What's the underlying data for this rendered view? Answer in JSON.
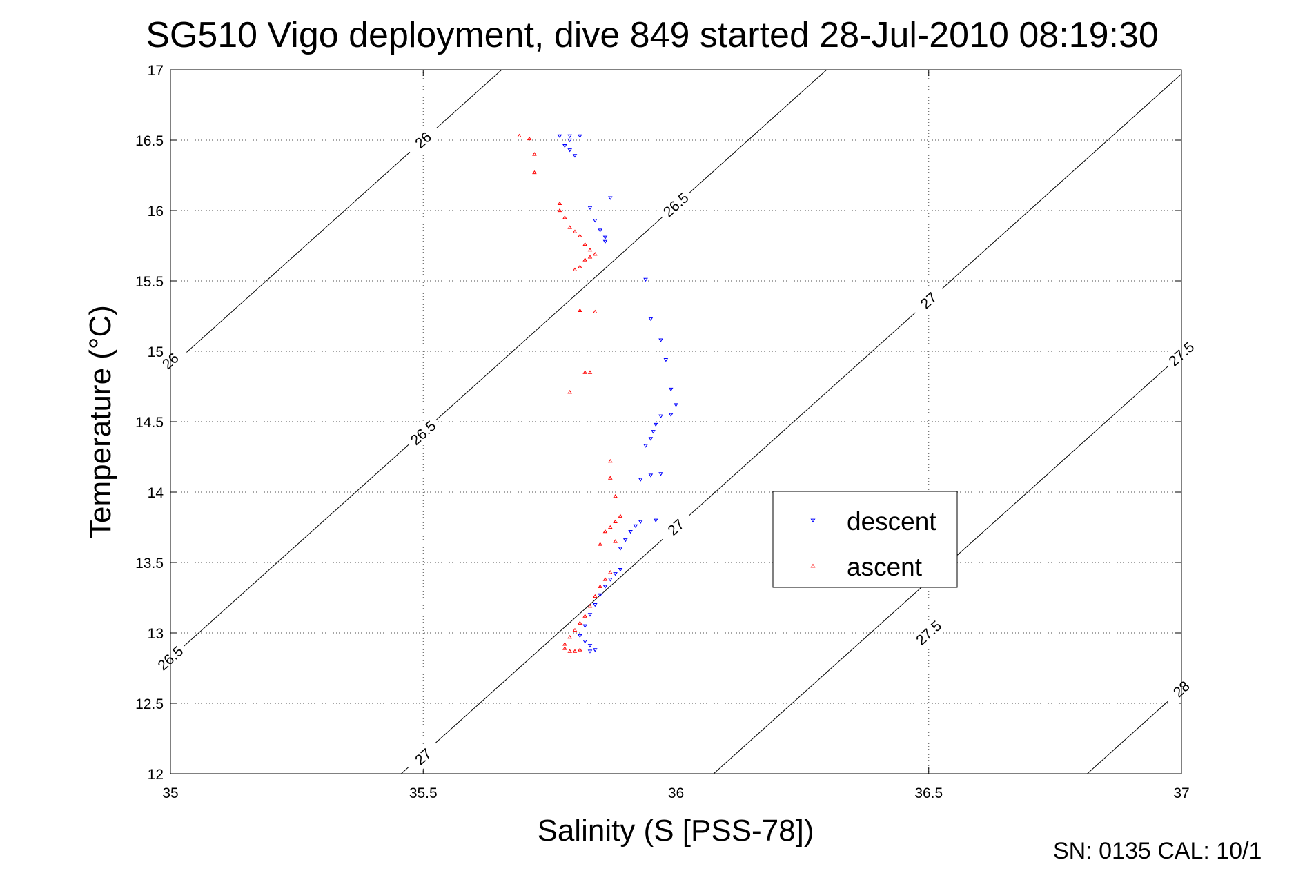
{
  "chart_data": {
    "type": "scatter",
    "title": "SG510 Vigo deployment, dive 849 started 28-Jul-2010 08:19:30",
    "xlabel": "Salinity (S [PSS-78])",
    "ylabel": "Temperature (°C)",
    "xlim": [
      35,
      37
    ],
    "ylim": [
      12,
      17
    ],
    "x_ticks": [
      "35",
      "35.5",
      "36",
      "36.5",
      "37"
    ],
    "y_ticks": [
      "12",
      "12.5",
      "13",
      "13.5",
      "14",
      "14.5",
      "15",
      "15.5",
      "16",
      "16.5",
      "17"
    ],
    "grid": true,
    "legend_position": "inside-right",
    "footer": "SN: 0135  CAL: 10/1",
    "density_contours": [
      {
        "label": "26",
        "anchors": [
          [
            35.5,
            16.5
          ],
          [
            35.0,
            14.93
          ]
        ]
      },
      {
        "label": "26.5",
        "anchors": [
          [
            36.0,
            16.04
          ],
          [
            35.5,
            14.42
          ],
          [
            35.0,
            12.82
          ]
        ]
      },
      {
        "label": "27",
        "anchors": [
          [
            36.5,
            15.36
          ],
          [
            36.0,
            13.75
          ],
          [
            35.5,
            12.12
          ]
        ]
      },
      {
        "label": "27.5",
        "anchors": [
          [
            37.0,
            14.98
          ],
          [
            36.5,
            13.0
          ]
        ]
      },
      {
        "label": "28",
        "anchors": [
          [
            37.0,
            12.6
          ]
        ]
      }
    ],
    "series": [
      {
        "name": "descent",
        "color": "#0000ff",
        "marker": "triangle-down",
        "points": [
          [
            35.77,
            16.53
          ],
          [
            35.79,
            16.53
          ],
          [
            35.81,
            16.53
          ],
          [
            35.79,
            16.5
          ],
          [
            35.78,
            16.46
          ],
          [
            35.79,
            16.43
          ],
          [
            35.8,
            16.39
          ],
          [
            35.87,
            16.09
          ],
          [
            35.83,
            16.02
          ],
          [
            35.84,
            15.93
          ],
          [
            35.85,
            15.86
          ],
          [
            35.86,
            15.81
          ],
          [
            35.86,
            15.78
          ],
          [
            35.94,
            15.51
          ],
          [
            35.95,
            15.23
          ],
          [
            35.97,
            15.08
          ],
          [
            35.98,
            14.94
          ],
          [
            35.99,
            14.73
          ],
          [
            36.0,
            14.62
          ],
          [
            35.99,
            14.55
          ],
          [
            35.97,
            14.54
          ],
          [
            35.96,
            14.48
          ],
          [
            35.955,
            14.43
          ],
          [
            35.95,
            14.38
          ],
          [
            35.94,
            14.33
          ],
          [
            35.93,
            14.09
          ],
          [
            35.95,
            14.12
          ],
          [
            35.97,
            14.13
          ],
          [
            35.96,
            13.8
          ],
          [
            35.93,
            13.79
          ],
          [
            35.92,
            13.76
          ],
          [
            35.91,
            13.72
          ],
          [
            35.9,
            13.66
          ],
          [
            35.89,
            13.6
          ],
          [
            35.89,
            13.45
          ],
          [
            35.88,
            13.42
          ],
          [
            35.87,
            13.38
          ],
          [
            35.86,
            13.33
          ],
          [
            35.85,
            13.27
          ],
          [
            35.84,
            13.2
          ],
          [
            35.83,
            13.13
          ],
          [
            35.82,
            13.05
          ],
          [
            35.81,
            12.98
          ],
          [
            35.82,
            12.94
          ],
          [
            35.83,
            12.91
          ],
          [
            35.84,
            12.88
          ],
          [
            35.83,
            12.87
          ]
        ]
      },
      {
        "name": "ascent",
        "color": "#ff0000",
        "marker": "triangle-up",
        "points": [
          [
            35.69,
            16.53
          ],
          [
            35.71,
            16.51
          ],
          [
            35.72,
            16.4
          ],
          [
            35.72,
            16.27
          ],
          [
            35.77,
            16.05
          ],
          [
            35.77,
            16.0
          ],
          [
            35.78,
            15.95
          ],
          [
            35.79,
            15.88
          ],
          [
            35.8,
            15.85
          ],
          [
            35.81,
            15.82
          ],
          [
            35.82,
            15.76
          ],
          [
            35.83,
            15.72
          ],
          [
            35.84,
            15.69
          ],
          [
            35.83,
            15.67
          ],
          [
            35.82,
            15.65
          ],
          [
            35.81,
            15.6
          ],
          [
            35.8,
            15.58
          ],
          [
            35.81,
            15.29
          ],
          [
            35.84,
            15.28
          ],
          [
            35.82,
            14.85
          ],
          [
            35.83,
            14.85
          ],
          [
            35.79,
            14.71
          ],
          [
            35.87,
            14.22
          ],
          [
            35.87,
            14.1
          ],
          [
            35.88,
            13.97
          ],
          [
            35.89,
            13.83
          ],
          [
            35.88,
            13.79
          ],
          [
            35.87,
            13.75
          ],
          [
            35.86,
            13.72
          ],
          [
            35.88,
            13.65
          ],
          [
            35.85,
            13.63
          ],
          [
            35.87,
            13.43
          ],
          [
            35.86,
            13.38
          ],
          [
            35.85,
            13.33
          ],
          [
            35.84,
            13.26
          ],
          [
            35.83,
            13.19
          ],
          [
            35.82,
            13.12
          ],
          [
            35.81,
            13.07
          ],
          [
            35.8,
            13.02
          ],
          [
            35.79,
            12.97
          ],
          [
            35.78,
            12.92
          ],
          [
            35.78,
            12.89
          ],
          [
            35.79,
            12.87
          ],
          [
            35.8,
            12.87
          ],
          [
            35.81,
            12.88
          ]
        ]
      }
    ]
  }
}
